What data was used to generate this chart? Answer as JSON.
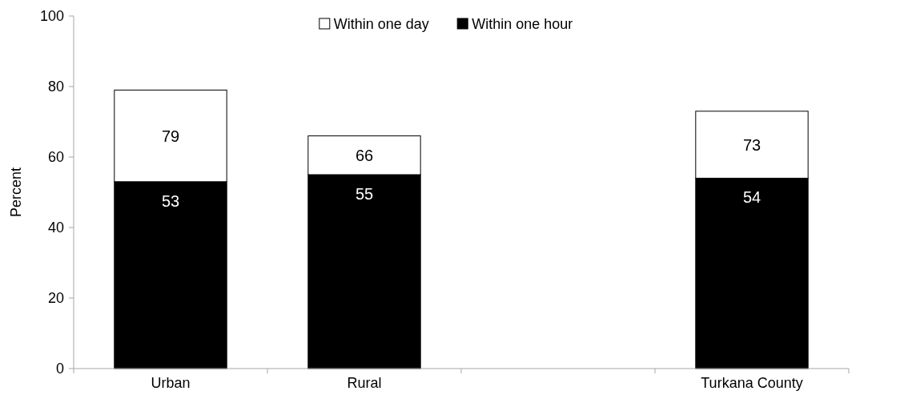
{
  "chart_data": {
    "type": "bar",
    "ylabel": "Percent",
    "categories": [
      "Urban",
      "Rural",
      null,
      "Turkana County"
    ],
    "stacked": true,
    "series": [
      {
        "name": "Within one hour",
        "color": "#000000",
        "values": [
          53,
          55,
          null,
          54
        ],
        "value_labels": [
          "53",
          "55",
          null,
          "54"
        ]
      },
      {
        "name": "Within one day",
        "color": "#ffffff",
        "values": [
          26,
          11,
          null,
          19
        ]
      }
    ],
    "totals": [
      "79",
      "66",
      null,
      "73"
    ],
    "ylim": [
      0,
      100
    ],
    "yticks": [
      0,
      20,
      40,
      60,
      80,
      100
    ],
    "legend": "top",
    "grid": false
  }
}
